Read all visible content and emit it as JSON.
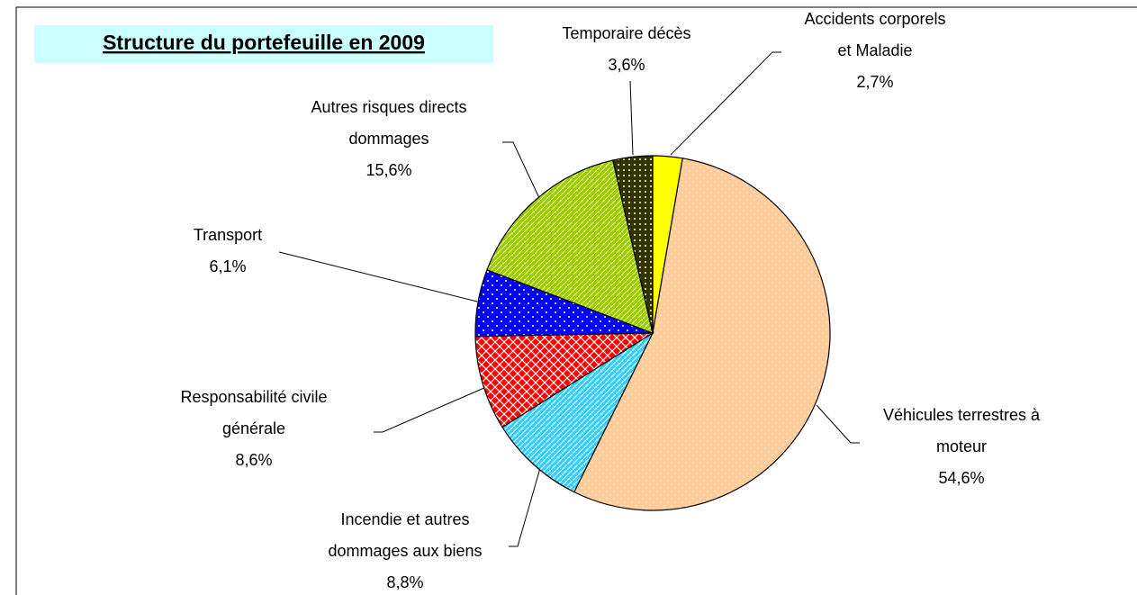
{
  "chart_data": {
    "type": "pie",
    "title": "Structure du portefeuille en 2009",
    "categories": [
      [
        "Accidents corporels",
        "et Maladie"
      ],
      [
        "Véhicules terrestres à",
        "moteur"
      ],
      [
        "Incendie et autres",
        "dommages aux biens"
      ],
      [
        "Responsabilité civile",
        "générale"
      ],
      [
        "Transport"
      ],
      [
        "Autres risques directs",
        "dommages"
      ],
      [
        "Temporaire décès"
      ]
    ],
    "values": [
      2.7,
      54.6,
      8.8,
      8.6,
      6.1,
      15.6,
      3.6
    ],
    "value_labels": [
      "2,7%",
      "54,6%",
      "8,8%",
      "8,6%",
      "6,1%",
      "15,6%",
      "3,6%"
    ],
    "colors": [
      "#ffff00",
      "#ffcc99",
      "#33ccff",
      "#ff0000",
      "#0000ff",
      "#99cc00",
      "#333300"
    ]
  }
}
